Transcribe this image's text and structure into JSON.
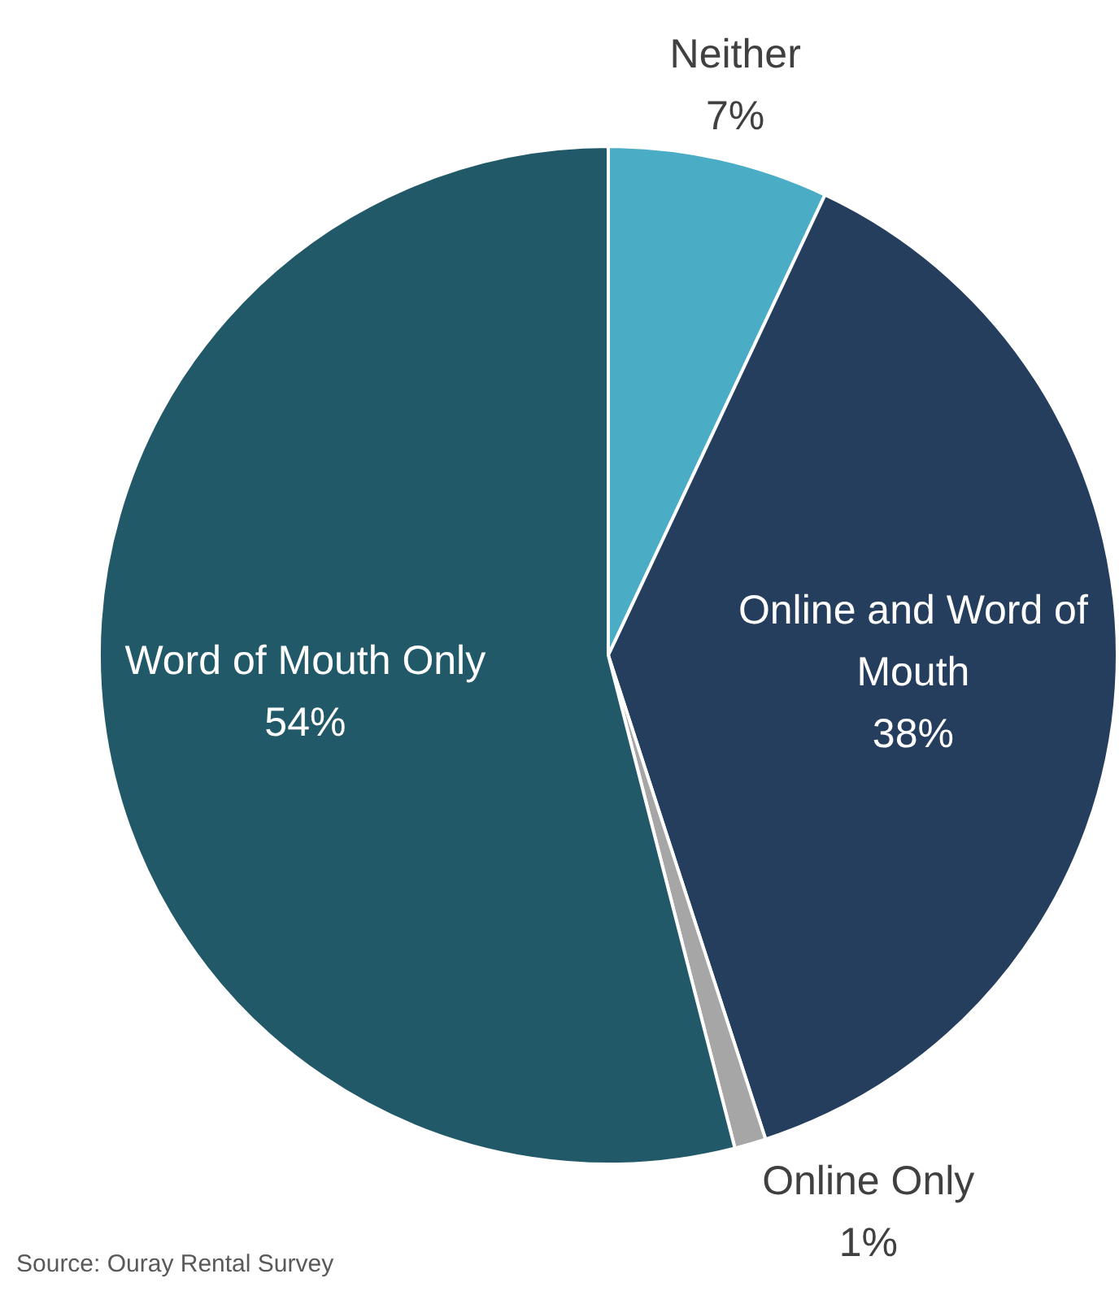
{
  "chart_data": {
    "type": "pie",
    "categories": [
      "Neither",
      "Online and Word of Mouth",
      "Online Only",
      "Word of Mouth Only"
    ],
    "values": [
      7,
      38,
      1,
      54
    ],
    "colors": [
      "#4bacc6",
      "#253e5e",
      "#a6a6a6",
      "#215968"
    ],
    "value_labels": [
      "7%",
      "38%",
      "1%",
      "54%"
    ],
    "annotations": [
      "Source: Ouray Rental Survey"
    ]
  }
}
